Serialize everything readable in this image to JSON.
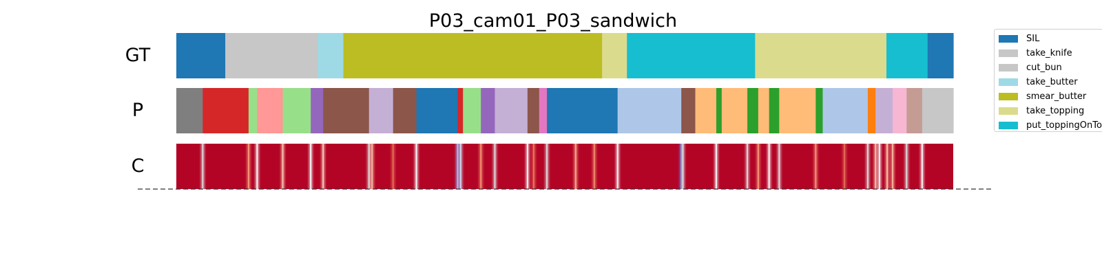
{
  "chart_data": {
    "type": "segmentation_timeline",
    "title": "P03_cam01_P03_sandwich",
    "row_labels": [
      "GT",
      "P",
      "C"
    ],
    "x_range": [
      0,
      1
    ],
    "legend": {
      "placement": "right-top",
      "entries": [
        {
          "label": "SIL",
          "color": "#1f77b4"
        },
        {
          "label": "take_knife",
          "color": "#c7c7c7"
        },
        {
          "label": "cut_bun",
          "color": "#c7c7c7"
        },
        {
          "label": "take_butter",
          "color": "#9edae5"
        },
        {
          "label": "smear_butter",
          "color": "#bcbd22"
        },
        {
          "label": "take_topping",
          "color": "#dbdb8d"
        },
        {
          "label": "put_toppingOnTop",
          "color": "#17becf"
        }
      ]
    },
    "gt_segments": [
      {
        "start": 0.0,
        "end": 0.063,
        "color": "#1f77b4"
      },
      {
        "start": 0.063,
        "end": 0.182,
        "color": "#c7c7c7"
      },
      {
        "start": 0.182,
        "end": 0.215,
        "color": "#9edae5"
      },
      {
        "start": 0.215,
        "end": 0.548,
        "color": "#bcbd22"
      },
      {
        "start": 0.548,
        "end": 0.58,
        "color": "#dbdb8d"
      },
      {
        "start": 0.58,
        "end": 0.745,
        "color": "#17becf"
      },
      {
        "start": 0.745,
        "end": 0.914,
        "color": "#dbdb8d"
      },
      {
        "start": 0.914,
        "end": 0.967,
        "color": "#17becf"
      },
      {
        "start": 0.967,
        "end": 1.0,
        "color": "#1f77b4"
      }
    ],
    "p_segments": [
      {
        "start": 0.0,
        "end": 0.034,
        "color": "#7f7f7f"
      },
      {
        "start": 0.034,
        "end": 0.093,
        "color": "#d62728"
      },
      {
        "start": 0.093,
        "end": 0.104,
        "color": "#98df8a"
      },
      {
        "start": 0.104,
        "end": 0.137,
        "color": "#ff9896"
      },
      {
        "start": 0.137,
        "end": 0.173,
        "color": "#98df8a"
      },
      {
        "start": 0.173,
        "end": 0.189,
        "color": "#9467bd"
      },
      {
        "start": 0.189,
        "end": 0.248,
        "color": "#8c564b"
      },
      {
        "start": 0.248,
        "end": 0.279,
        "color": "#c5b0d5"
      },
      {
        "start": 0.279,
        "end": 0.309,
        "color": "#8c564b"
      },
      {
        "start": 0.309,
        "end": 0.362,
        "color": "#1f77b4"
      },
      {
        "start": 0.362,
        "end": 0.369,
        "color": "#d62728"
      },
      {
        "start": 0.369,
        "end": 0.392,
        "color": "#98df8a"
      },
      {
        "start": 0.392,
        "end": 0.41,
        "color": "#9467bd"
      },
      {
        "start": 0.41,
        "end": 0.452,
        "color": "#c5b0d5"
      },
      {
        "start": 0.452,
        "end": 0.467,
        "color": "#8c564b"
      },
      {
        "start": 0.467,
        "end": 0.477,
        "color": "#e377c2"
      },
      {
        "start": 0.477,
        "end": 0.568,
        "color": "#1f77b4"
      },
      {
        "start": 0.568,
        "end": 0.65,
        "color": "#aec7e8"
      },
      {
        "start": 0.65,
        "end": 0.668,
        "color": "#8c564b"
      },
      {
        "start": 0.668,
        "end": 0.695,
        "color": "#ffbb78"
      },
      {
        "start": 0.695,
        "end": 0.702,
        "color": "#2ca02c"
      },
      {
        "start": 0.702,
        "end": 0.735,
        "color": "#ffbb78"
      },
      {
        "start": 0.735,
        "end": 0.749,
        "color": "#2ca02c"
      },
      {
        "start": 0.749,
        "end": 0.763,
        "color": "#ffbb78"
      },
      {
        "start": 0.763,
        "end": 0.776,
        "color": "#2ca02c"
      },
      {
        "start": 0.776,
        "end": 0.823,
        "color": "#ffbb78"
      },
      {
        "start": 0.823,
        "end": 0.832,
        "color": "#2ca02c"
      },
      {
        "start": 0.832,
        "end": 0.89,
        "color": "#aec7e8"
      },
      {
        "start": 0.89,
        "end": 0.9,
        "color": "#ff7f0e"
      },
      {
        "start": 0.9,
        "end": 0.922,
        "color": "#c5b0d5"
      },
      {
        "start": 0.922,
        "end": 0.94,
        "color": "#f7b6d2"
      },
      {
        "start": 0.94,
        "end": 0.96,
        "color": "#c49c94"
      },
      {
        "start": 0.96,
        "end": 1.0,
        "color": "#c7c7c7"
      }
    ],
    "c_base_color": "#b40426",
    "c_marks": [
      {
        "pos": 0.034,
        "color": "#dddcdc"
      },
      {
        "pos": 0.093,
        "color": "#f4987a"
      },
      {
        "pos": 0.104,
        "color": "#f7f7f7"
      },
      {
        "pos": 0.137,
        "color": "#f4c5ad"
      },
      {
        "pos": 0.173,
        "color": "#f7f7f7"
      },
      {
        "pos": 0.189,
        "color": "#f2cbb7"
      },
      {
        "pos": 0.248,
        "color": "#dddcdc"
      },
      {
        "pos": 0.252,
        "color": "#f7b89c"
      },
      {
        "pos": 0.279,
        "color": "#e36c55"
      },
      {
        "pos": 0.309,
        "color": "#f7f7f7"
      },
      {
        "pos": 0.362,
        "color": "#9abbff"
      },
      {
        "pos": 0.366,
        "color": "#cbd8ee"
      },
      {
        "pos": 0.392,
        "color": "#f29072"
      },
      {
        "pos": 0.41,
        "color": "#dddcdc"
      },
      {
        "pos": 0.452,
        "color": "#f7f7f7"
      },
      {
        "pos": 0.46,
        "color": "#e8765c"
      },
      {
        "pos": 0.477,
        "color": "#dddcdc"
      },
      {
        "pos": 0.514,
        "color": "#f7a889"
      },
      {
        "pos": 0.538,
        "color": "#ef8a6d"
      },
      {
        "pos": 0.568,
        "color": "#f7f7f7"
      },
      {
        "pos": 0.65,
        "color": "#5977e3"
      },
      {
        "pos": 0.652,
        "color": "#dddcdc"
      },
      {
        "pos": 0.695,
        "color": "#f7f7f7"
      },
      {
        "pos": 0.735,
        "color": "#dddcdc"
      },
      {
        "pos": 0.749,
        "color": "#f4987a"
      },
      {
        "pos": 0.763,
        "color": "#f7f7f7"
      },
      {
        "pos": 0.776,
        "color": "#dddcdc"
      },
      {
        "pos": 0.823,
        "color": "#f39577"
      },
      {
        "pos": 0.86,
        "color": "#e36c55"
      },
      {
        "pos": 0.89,
        "color": "#dddcdc"
      },
      {
        "pos": 0.9,
        "color": "#f7c4ab"
      },
      {
        "pos": 0.905,
        "color": "#f7f7f7"
      },
      {
        "pos": 0.915,
        "color": "#f5c0a7"
      },
      {
        "pos": 0.922,
        "color": "#f7b89c"
      },
      {
        "pos": 0.94,
        "color": "#dddcdc"
      },
      {
        "pos": 0.96,
        "color": "#f7f7f7"
      }
    ]
  }
}
